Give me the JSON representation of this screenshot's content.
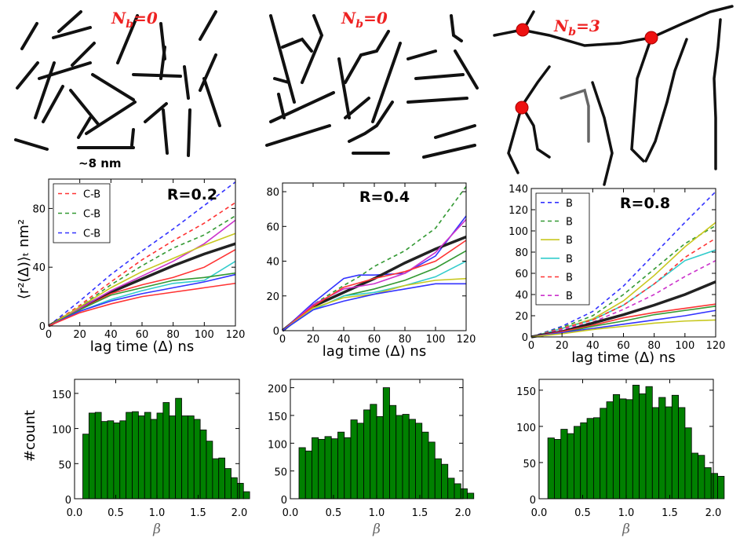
{
  "schematics": [
    {
      "label_main": "N",
      "label_sub": "b",
      "label_eq": "=0"
    },
    {
      "label_main": "N",
      "label_sub": "b",
      "label_eq": "=0"
    },
    {
      "label_main": "N",
      "label_sub": "b",
      "label_eq": "=3"
    }
  ],
  "scale_label": "~8 nm",
  "msd_ylabel": "⟨r²(Δ)⟩ₜ nm²",
  "hist_ylabel": "#count",
  "beta_label": "β",
  "colors": {
    "red": "#ff3333",
    "green": "#339933",
    "blue": "#3333ff",
    "yellow": "#c8c820",
    "cyan": "#33cccc",
    "magenta": "#cc33cc",
    "black": "#222222",
    "bar": "#008000"
  },
  "chart_data": [
    {
      "type": "line",
      "title": "R=0.2",
      "xlabel": "lag time (Δ) ns",
      "xlim": [
        0,
        120
      ],
      "ylim": [
        0,
        100
      ],
      "xticks": [
        0,
        20,
        40,
        60,
        80,
        100,
        120
      ],
      "yticks": [
        0,
        40,
        80
      ],
      "legend": [
        "C-B",
        "C-B",
        "C-B"
      ],
      "legend_position": "top-left",
      "series": [
        {
          "color": "red",
          "dash": true,
          "x": [
            0,
            20,
            40,
            60,
            80,
            100,
            120
          ],
          "y": [
            0,
            14,
            30,
            45,
            58,
            70,
            84
          ]
        },
        {
          "color": "green",
          "dash": true,
          "x": [
            0,
            20,
            40,
            60,
            80,
            100,
            120
          ],
          "y": [
            0,
            13,
            28,
            41,
            53,
            62,
            75
          ]
        },
        {
          "color": "blue",
          "dash": true,
          "x": [
            0,
            20,
            40,
            60,
            80,
            100,
            120
          ],
          "y": [
            0,
            17,
            35,
            51,
            66,
            82,
            98
          ]
        },
        {
          "color": "black",
          "thick": true,
          "x": [
            0,
            20,
            40,
            60,
            80,
            100,
            120
          ],
          "y": [
            0,
            12,
            23,
            32,
            41,
            49,
            56
          ]
        },
        {
          "color": "magenta",
          "x": [
            0,
            20,
            40,
            60,
            80,
            100,
            120
          ],
          "y": [
            0,
            12,
            24,
            34,
            44,
            56,
            72
          ]
        },
        {
          "color": "yellow",
          "x": [
            0,
            20,
            40,
            60,
            80,
            100,
            120
          ],
          "y": [
            0,
            13,
            26,
            37,
            46,
            55,
            63
          ]
        },
        {
          "color": "red",
          "x": [
            0,
            20,
            40,
            60,
            80,
            100,
            120
          ],
          "y": [
            0,
            11,
            22,
            28,
            33,
            40,
            52
          ]
        },
        {
          "color": "cyan",
          "x": [
            0,
            20,
            40,
            60,
            80,
            100,
            120
          ],
          "y": [
            0,
            10,
            18,
            24,
            29,
            31,
            44
          ]
        },
        {
          "color": "green",
          "x": [
            0,
            20,
            40,
            60,
            80,
            100,
            120
          ],
          "y": [
            0,
            11,
            21,
            26,
            31,
            33,
            36
          ]
        },
        {
          "color": "blue",
          "x": [
            0,
            20,
            40,
            60,
            80,
            100,
            120
          ],
          "y": [
            0,
            10,
            17,
            22,
            26,
            30,
            35
          ]
        },
        {
          "color": "red",
          "x": [
            0,
            20,
            40,
            60,
            80,
            100,
            120
          ],
          "y": [
            0,
            9,
            15,
            20,
            23,
            26,
            29
          ]
        }
      ]
    },
    {
      "type": "line",
      "title": "R=0.4",
      "xlabel": "lag time (Δ) ns",
      "xlim": [
        0,
        120
      ],
      "ylim": [
        0,
        85
      ],
      "xticks": [
        0,
        20,
        40,
        60,
        80,
        100,
        120
      ],
      "yticks": [
        0,
        20,
        40,
        60,
        80
      ],
      "series": [
        {
          "color": "green",
          "dash": true,
          "x": [
            0,
            20,
            40,
            50,
            60,
            80,
            100,
            120
          ],
          "y": [
            0,
            15,
            26,
            31,
            37,
            46,
            59,
            83
          ]
        },
        {
          "color": "blue",
          "x": [
            0,
            20,
            40,
            50,
            60,
            80,
            100,
            120
          ],
          "y": [
            0,
            16,
            30,
            32,
            32,
            33,
            43,
            66
          ]
        },
        {
          "color": "black",
          "thick": true,
          "x": [
            0,
            20,
            40,
            60,
            80,
            100,
            120
          ],
          "y": [
            0,
            14,
            22,
            30,
            39,
            47,
            54
          ]
        },
        {
          "color": "magenta",
          "x": [
            0,
            20,
            40,
            60,
            80,
            100,
            120
          ],
          "y": [
            0,
            15,
            24,
            27,
            33,
            45,
            64
          ]
        },
        {
          "color": "red",
          "x": [
            0,
            20,
            40,
            60,
            80,
            100,
            120
          ],
          "y": [
            0,
            14,
            25,
            30,
            34,
            40,
            52
          ]
        },
        {
          "color": "green",
          "x": [
            0,
            20,
            40,
            60,
            80,
            100,
            120
          ],
          "y": [
            0,
            12,
            20,
            24,
            29,
            36,
            46
          ]
        },
        {
          "color": "cyan",
          "x": [
            0,
            20,
            40,
            60,
            80,
            100,
            120
          ],
          "y": [
            0,
            12,
            20,
            22,
            26,
            31,
            40
          ]
        },
        {
          "color": "yellow",
          "x": [
            0,
            20,
            40,
            60,
            80,
            100,
            120
          ],
          "y": [
            0,
            13,
            19,
            21,
            26,
            29,
            30
          ]
        },
        {
          "color": "blue",
          "x": [
            0,
            20,
            40,
            60,
            80,
            100,
            120
          ],
          "y": [
            0,
            12,
            17,
            21,
            24,
            27,
            27
          ]
        }
      ]
    },
    {
      "type": "line",
      "title": "R=0.8",
      "xlabel": "lag time (Δ) ns",
      "xlim": [
        0,
        120
      ],
      "ylim": [
        0,
        140
      ],
      "xticks": [
        0,
        20,
        40,
        60,
        80,
        100,
        120
      ],
      "yticks": [
        0,
        20,
        40,
        60,
        80,
        100,
        120,
        140
      ],
      "legend": [
        "B",
        "B",
        "B",
        "B",
        "B",
        "B"
      ],
      "legend_position": "top-left",
      "series": [
        {
          "color": "blue",
          "dash": true,
          "x": [
            0,
            20,
            40,
            60,
            80,
            100,
            120
          ],
          "y": [
            0,
            10,
            24,
            48,
            78,
            108,
            137
          ]
        },
        {
          "color": "green",
          "dash": true,
          "x": [
            0,
            20,
            40,
            60,
            80,
            100,
            120
          ],
          "y": [
            0,
            9,
            20,
            40,
            64,
            88,
            105
          ]
        },
        {
          "color": "yellow",
          "x": [
            0,
            20,
            40,
            60,
            80,
            100,
            120
          ],
          "y": [
            0,
            8,
            17,
            34,
            58,
            85,
            108
          ]
        },
        {
          "color": "cyan",
          "x": [
            0,
            20,
            40,
            60,
            80,
            100,
            120
          ],
          "y": [
            0,
            8,
            16,
            30,
            50,
            72,
            82
          ]
        },
        {
          "color": "red",
          "dash": true,
          "x": [
            0,
            20,
            40,
            60,
            80,
            100,
            120
          ],
          "y": [
            0,
            8,
            16,
            30,
            50,
            75,
            93
          ]
        },
        {
          "color": "magenta",
          "dash": true,
          "x": [
            0,
            20,
            40,
            60,
            80,
            100,
            120
          ],
          "y": [
            0,
            7,
            14,
            26,
            40,
            57,
            72
          ]
        },
        {
          "color": "black",
          "thick": true,
          "x": [
            0,
            20,
            40,
            60,
            80,
            100,
            120
          ],
          "y": [
            0,
            5,
            13,
            21,
            30,
            40,
            52
          ]
        },
        {
          "color": "red",
          "x": [
            0,
            20,
            40,
            60,
            80,
            100,
            120
          ],
          "y": [
            0,
            5,
            11,
            18,
            23,
            27,
            31
          ]
        },
        {
          "color": "green",
          "x": [
            0,
            20,
            40,
            60,
            80,
            100,
            120
          ],
          "y": [
            0,
            4,
            10,
            15,
            21,
            25,
            29
          ]
        },
        {
          "color": "blue",
          "x": [
            0,
            20,
            40,
            60,
            80,
            100,
            120
          ],
          "y": [
            0,
            4,
            8,
            12,
            16,
            20,
            25
          ]
        },
        {
          "color": "yellow",
          "x": [
            0,
            20,
            40,
            60,
            80,
            100,
            120
          ],
          "y": [
            0,
            3,
            7,
            10,
            13,
            15,
            16
          ]
        }
      ]
    },
    {
      "type": "bar",
      "xlabel": "β",
      "ylabel": "#count",
      "xlim": [
        0,
        2.0
      ],
      "ylim": [
        0,
        170
      ],
      "xticks": [
        0.0,
        0.5,
        1.0,
        1.5,
        2.0
      ],
      "yticks": [
        0,
        50,
        100,
        150
      ],
      "bin_start": 0.1,
      "bin_width": 0.075,
      "values": [
        92,
        122,
        123,
        110,
        111,
        108,
        111,
        123,
        124,
        118,
        123,
        113,
        122,
        137,
        118,
        143,
        118,
        118,
        113,
        98,
        82,
        57,
        58,
        43,
        30,
        22,
        10
      ]
    },
    {
      "type": "bar",
      "xlabel": "β",
      "xlim": [
        0,
        2.0
      ],
      "ylim": [
        0,
        215
      ],
      "xticks": [
        0.0,
        0.5,
        1.0,
        1.5,
        2.0
      ],
      "yticks": [
        0,
        50,
        100,
        150,
        200
      ],
      "bin_start": 0.1,
      "bin_width": 0.075,
      "values": [
        92,
        86,
        110,
        107,
        112,
        108,
        120,
        110,
        142,
        136,
        160,
        170,
        148,
        200,
        168,
        150,
        152,
        143,
        136,
        120,
        102,
        72,
        62,
        37,
        27,
        18,
        10
      ]
    },
    {
      "type": "bar",
      "xlabel": "β",
      "xlim": [
        0,
        2.0
      ],
      "ylim": [
        0,
        165
      ],
      "xticks": [
        0.0,
        0.5,
        1.0,
        1.5,
        2.0
      ],
      "yticks": [
        0,
        50,
        100,
        150
      ],
      "bin_start": 0.1,
      "bin_width": 0.075,
      "values": [
        84,
        82,
        96,
        90,
        100,
        105,
        111,
        112,
        125,
        134,
        144,
        138,
        137,
        157,
        145,
        155,
        126,
        140,
        127,
        143,
        126,
        98,
        63,
        60,
        43,
        35,
        31
      ]
    }
  ]
}
